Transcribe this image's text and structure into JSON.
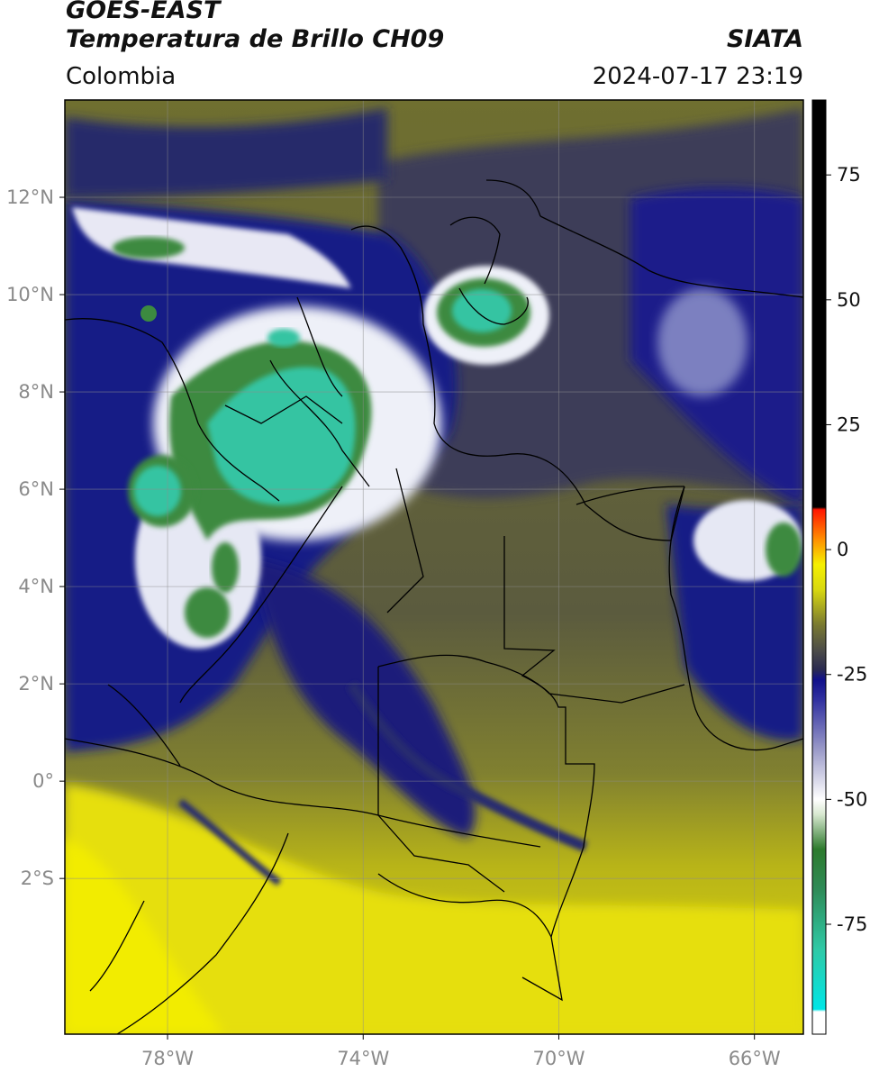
{
  "header": {
    "satellite": "GOES-EAST",
    "product": "Temperatura de Brillo CH09",
    "brand": "SIATA",
    "region": "Colombia",
    "timestamp": "2024-07-17 23:19"
  },
  "map": {
    "lon_range": [
      -80.1,
      -65.0
    ],
    "lat_range": [
      -5.2,
      14.0
    ],
    "lat_ticks": [
      {
        "value": 12,
        "label": "12°N"
      },
      {
        "value": 10,
        "label": "10°N"
      },
      {
        "value": 8,
        "label": "8°N"
      },
      {
        "value": 6,
        "label": "6°N"
      },
      {
        "value": 4,
        "label": "4°N"
      },
      {
        "value": 2,
        "label": "2°N"
      },
      {
        "value": 0,
        "label": "0°"
      },
      {
        "value": -2,
        "label": "2°S"
      }
    ],
    "lon_ticks": [
      {
        "value": -78,
        "label": "78°W"
      },
      {
        "value": -74,
        "label": "74°W"
      },
      {
        "value": -70,
        "label": "70°W"
      },
      {
        "value": -66,
        "label": "66°W"
      }
    ],
    "grid": true,
    "colors": {
      "warm_dry": "#e9e20a",
      "olive": "#707030",
      "grey": "#4a4a55",
      "navy": "#141880",
      "white_cloud": "#f2f2f8",
      "green": "#3a8a3a",
      "teal": "#2fc9a6",
      "border": "#000000"
    }
  },
  "colorbar": {
    "min": -97,
    "max": 90,
    "ticks": [
      {
        "value": 75,
        "label": "75"
      },
      {
        "value": 50,
        "label": "50"
      },
      {
        "value": 25,
        "label": "25"
      },
      {
        "value": 0,
        "label": "0"
      },
      {
        "value": -25,
        "label": "-25"
      },
      {
        "value": -50,
        "label": "-50"
      },
      {
        "value": -75,
        "label": "-75"
      }
    ],
    "stops": [
      {
        "value": -97,
        "color": "#ffffff"
      },
      {
        "value": -92.5,
        "color": "#ffffff"
      },
      {
        "value": -92,
        "color": "#00e6e6"
      },
      {
        "value": -80,
        "color": "#2fc9a6"
      },
      {
        "value": -68,
        "color": "#2e8b57"
      },
      {
        "value": -60,
        "color": "#2d7a2d"
      },
      {
        "value": -53,
        "color": "#d8e8d0"
      },
      {
        "value": -50,
        "color": "#ffffff"
      },
      {
        "value": -40,
        "color": "#9a9ac8"
      },
      {
        "value": -30,
        "color": "#3030a0"
      },
      {
        "value": -26,
        "color": "#10108a"
      },
      {
        "value": -24,
        "color": "#2a2a50"
      },
      {
        "value": -20,
        "color": "#4e4e48"
      },
      {
        "value": -15,
        "color": "#7a7a30"
      },
      {
        "value": -8,
        "color": "#d8d810"
      },
      {
        "value": -3,
        "color": "#f5f000"
      },
      {
        "value": 2,
        "color": "#ff9000"
      },
      {
        "value": 8,
        "color": "#ff1500"
      },
      {
        "value": 8.5,
        "color": "#000000"
      },
      {
        "value": 90,
        "color": "#000000"
      }
    ]
  }
}
